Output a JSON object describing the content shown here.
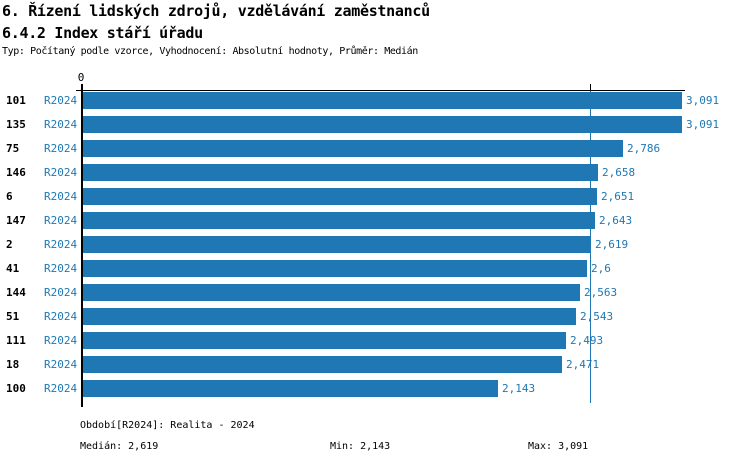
{
  "header": {
    "title_line1": "6. Řízení lidských zdrojů, vzdělávání zaměstnanců",
    "title_line2": "6.4.2 Index stáří úřadu",
    "subtitle": "Typ: Počítaný podle vzorce, Vyhodnocení: Absolutní hodnoty, Průměr: Medián"
  },
  "colors": {
    "bar_blue": "#1f77b4",
    "label_blue": "#1f77b4",
    "axis_black": "#000000"
  },
  "chart_data": {
    "type": "bar",
    "orientation": "horizontal",
    "title": "6.4.2 Index stáří úřadu",
    "categories": [
      "101",
      "135",
      "75",
      "146",
      "6",
      "147",
      "2",
      "41",
      "144",
      "51",
      "111",
      "18",
      "100"
    ],
    "series": [
      {
        "name": "R2024",
        "values": [
          3.091,
          3.091,
          2.786,
          2.658,
          2.651,
          2.643,
          2.619,
          2.6,
          2.563,
          2.543,
          2.493,
          2.471,
          2.143
        ],
        "value_labels": [
          "3,091",
          "3,091",
          "2,786",
          "2,658",
          "2,651",
          "2,643",
          "2,619",
          "2,6",
          "2,563",
          "2,543",
          "2,493",
          "2,471",
          "2,143"
        ]
      }
    ],
    "row_period_label": "R2024",
    "xlim": [
      0,
      3.091
    ],
    "x_axis_zero_label": "0",
    "median_value": 2.619,
    "grid": "median-line-only",
    "legend_position": "none"
  },
  "footer": {
    "period": "Období[R2024]: Realita - 2024",
    "median": "Medián: 2,619",
    "min": "Min: 2,143",
    "max": "Max: 3,091"
  }
}
